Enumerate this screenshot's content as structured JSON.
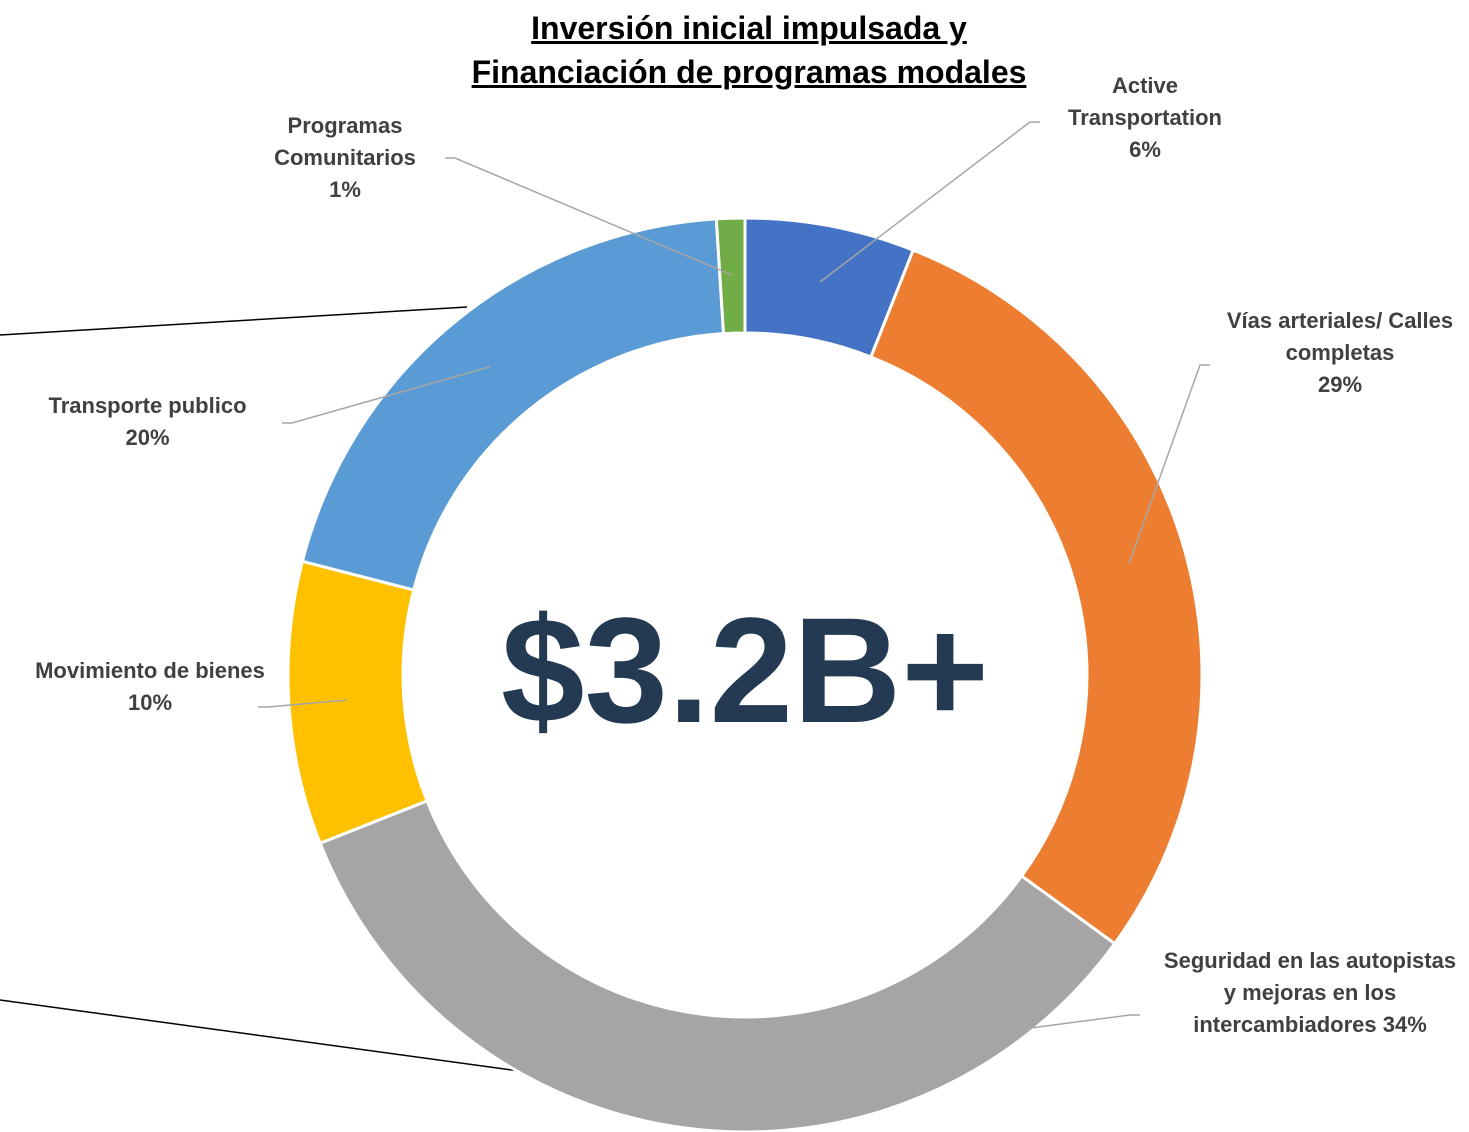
{
  "chart_data": {
    "type": "donut",
    "title": "Inversión inicial impulsada y Financiación de programas modales",
    "center_label": "$3.2B+",
    "categories": [
      "Active Transportation",
      "Vías arteriales/ Calles completas",
      "Seguridad en las autopistas y mejoras en los intercambiadores",
      "Movimiento de bienes",
      "Transporte publico",
      "Programas Comunitarios"
    ],
    "values": [
      6,
      29,
      34,
      10,
      20,
      1
    ],
    "value_labels": [
      "6%",
      "29%",
      "34%",
      "10%",
      "20%",
      "1%"
    ],
    "colors": [
      "#4472c4",
      "#ed7d31",
      "#a5a5a5",
      "#ffc000",
      "#5b9bd5",
      "#70ad47"
    ]
  }
}
